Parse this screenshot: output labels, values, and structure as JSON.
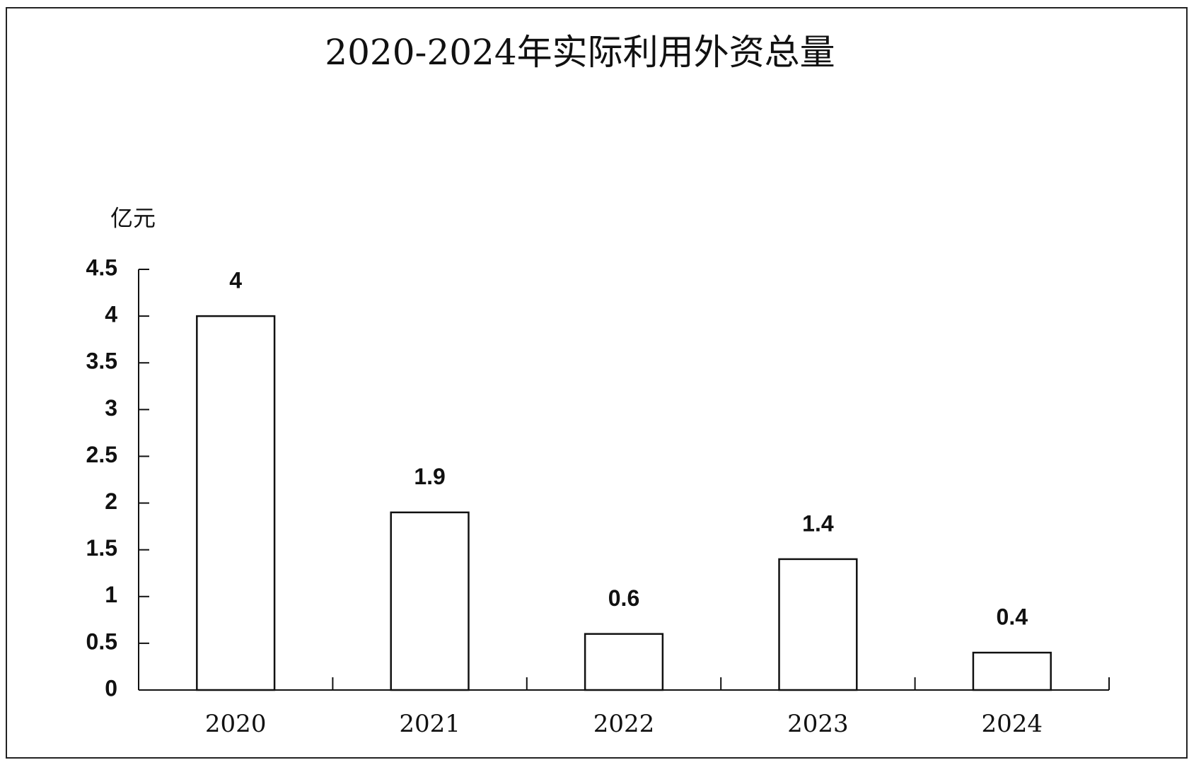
{
  "chart_data": {
    "type": "bar",
    "title": "2020-2024年实际利用外资总量",
    "ylabel": "亿元",
    "categories": [
      "2020",
      "2021",
      "2022",
      "2023",
      "2024"
    ],
    "values": [
      4,
      1.9,
      0.6,
      1.4,
      0.4
    ],
    "color": "#ffffff",
    "ylim": [
      0,
      4.5
    ],
    "yticks": [
      0,
      0.5,
      1,
      1.5,
      2,
      2.5,
      3,
      3.5,
      4,
      4.5
    ],
    "grid": false
  }
}
